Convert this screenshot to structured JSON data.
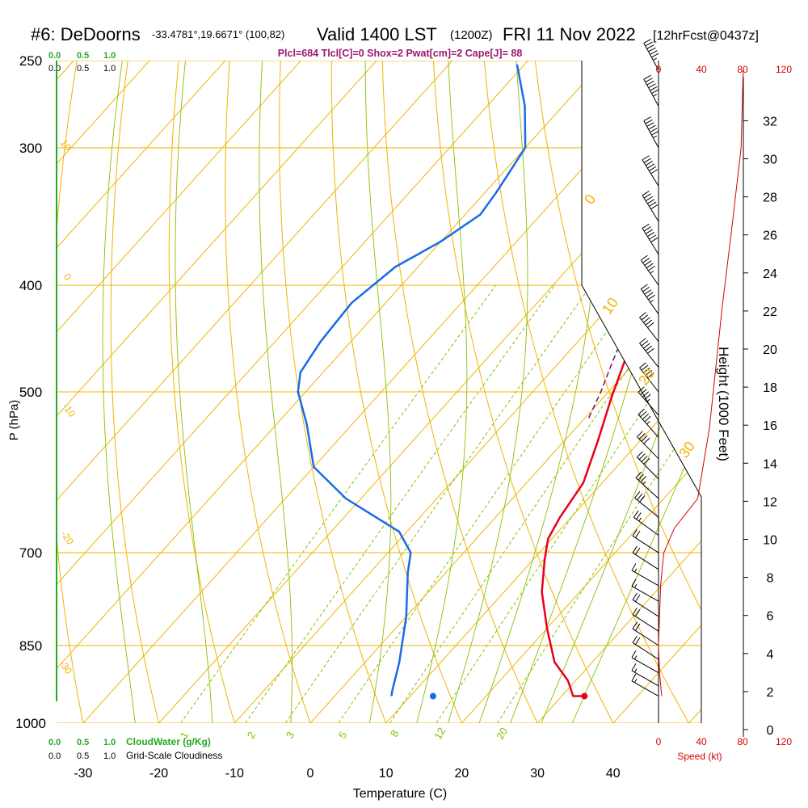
{
  "header": {
    "station": "#6: DeDoorns",
    "coords": "-33.4781°,19.6671° (100,82)",
    "valid": "Valid 1400 LST",
    "zulu": "(1200Z)",
    "date": "FRI 11 Nov 2022",
    "forecast": "[12hrFcst@0437z]",
    "params": "Plcl=684 Tlcl[C]=0 Shox=2 Pwat[cm]=2 Cape[J]= 88"
  },
  "colors": {
    "temperature": "#e8001a",
    "dewpoint": "#1a6be8",
    "parcel": "#7a1060",
    "isobar": "#f0b400",
    "dry_adiabat": "#f0b400",
    "moist_adiabat": "#88c000",
    "mixing_ratio": "#88c000",
    "cloud_water": "#22aa22",
    "speed_profile": "#d40000"
  },
  "legend_bottom": {
    "cloudwater_label": "CloudWater (g/Kg)",
    "cloudiness_label": "Grid-Scale Cloudiness",
    "scale_values": [
      "0.0",
      "0.5",
      "1.0"
    ]
  },
  "legend_top": {
    "scale_values": [
      "0.0",
      "0.5",
      "1.0"
    ]
  },
  "speed_axis": {
    "label": "Speed (kt)",
    "ticks_left": [
      "0",
      "40",
      "80",
      "120"
    ],
    "ticks_right": [
      "0",
      "40",
      "80",
      "120"
    ]
  },
  "chart_data": {
    "type": "line",
    "title": "",
    "xlabel": "Temperature (C)",
    "ylabel": "P (hPa)",
    "y2label": "Height (1000 Feet)",
    "x_ticks": [
      -30,
      -20,
      -10,
      0,
      10,
      20,
      30,
      40
    ],
    "y_ticks": [
      250,
      300,
      400,
      500,
      700,
      850,
      1000
    ],
    "y2_ticks": [
      0,
      2,
      4,
      6,
      8,
      10,
      12,
      14,
      16,
      18,
      20,
      22,
      24,
      26,
      28,
      30,
      32
    ],
    "dry_adiabat_labels": [
      "0",
      "10",
      "20",
      "30"
    ],
    "moist_adiabat_labels": [
      "10",
      "0",
      "-10",
      "-20",
      "-30"
    ],
    "mixing_ratio_labels": [
      "1",
      "2",
      "3",
      "5",
      "8",
      "12",
      "20"
    ],
    "surface_temperature": 33,
    "surface_dewpoint": 13,
    "series": [
      {
        "key": "temperature",
        "values": [
          [
            33,
            945
          ],
          [
            31.5,
            945
          ],
          [
            29,
            915
          ],
          [
            25,
            880
          ],
          [
            20,
            820
          ],
          [
            15,
            760
          ],
          [
            11.5,
            710
          ],
          [
            9.5,
            680
          ],
          [
            8.5,
            650
          ],
          [
            7.5,
            605
          ],
          [
            4.5,
            555
          ],
          [
            1,
            505
          ],
          [
            -2,
            462
          ],
          [
            -5,
            420
          ],
          [
            -9,
            380
          ],
          [
            -11.5,
            352
          ],
          [
            -14.5,
            322
          ],
          [
            -17.5,
            297
          ],
          [
            -22,
            275
          ],
          [
            -27,
            252
          ]
        ]
      },
      {
        "key": "dewpoint",
        "values": [
          [
            7.5,
            945
          ],
          [
            7,
            935
          ],
          [
            4.5,
            880
          ],
          [
            0,
            800
          ],
          [
            -5,
            730
          ],
          [
            -7,
            700
          ],
          [
            -11,
            670
          ],
          [
            -22,
            625
          ],
          [
            -30,
            585
          ],
          [
            -36,
            535
          ],
          [
            -41,
            500
          ],
          [
            -43,
            480
          ],
          [
            -44,
            450
          ],
          [
            -44.5,
            415
          ],
          [
            -43,
            385
          ],
          [
            -40,
            365
          ],
          [
            -38,
            345
          ],
          [
            -38.5,
            330
          ],
          [
            -40,
            300
          ],
          [
            -45,
            275
          ],
          [
            -51,
            252
          ]
        ]
      },
      {
        "key": "parcel",
        "values": [
          [
            0.5,
            528
          ],
          [
            -1,
            500
          ],
          [
            -3,
            470
          ],
          [
            -5,
            440
          ],
          [
            -7,
            415
          ],
          [
            -9.5,
            385
          ],
          [
            -12,
            360
          ],
          [
            -13,
            343
          ]
        ]
      }
    ],
    "wind_speed": [
      [
        3,
        945
      ],
      [
        1,
        900
      ],
      [
        0,
        850
      ],
      [
        2,
        750
      ],
      [
        5,
        700
      ],
      [
        15,
        665
      ],
      [
        37,
        625
      ],
      [
        48,
        540
      ],
      [
        60,
        420
      ],
      [
        70,
        350
      ],
      [
        78,
        300
      ],
      [
        80,
        255
      ]
    ],
    "wind_barbs": [
      [
        945,
        15
      ],
      [
        925,
        15
      ],
      [
        900,
        15
      ],
      [
        875,
        20
      ],
      [
        850,
        20
      ],
      [
        825,
        20
      ],
      [
        800,
        20
      ],
      [
        775,
        15
      ],
      [
        750,
        15
      ],
      [
        725,
        20
      ],
      [
        700,
        20
      ],
      [
        675,
        25
      ],
      [
        650,
        30
      ],
      [
        625,
        35
      ],
      [
        600,
        40
      ],
      [
        575,
        40
      ],
      [
        550,
        45
      ],
      [
        525,
        45
      ],
      [
        500,
        50
      ],
      [
        475,
        50
      ],
      [
        450,
        50
      ],
      [
        425,
        55
      ],
      [
        400,
        55
      ],
      [
        375,
        60
      ],
      [
        350,
        60
      ],
      [
        325,
        60
      ],
      [
        300,
        65
      ],
      [
        275,
        65
      ],
      [
        255,
        65
      ]
    ]
  }
}
